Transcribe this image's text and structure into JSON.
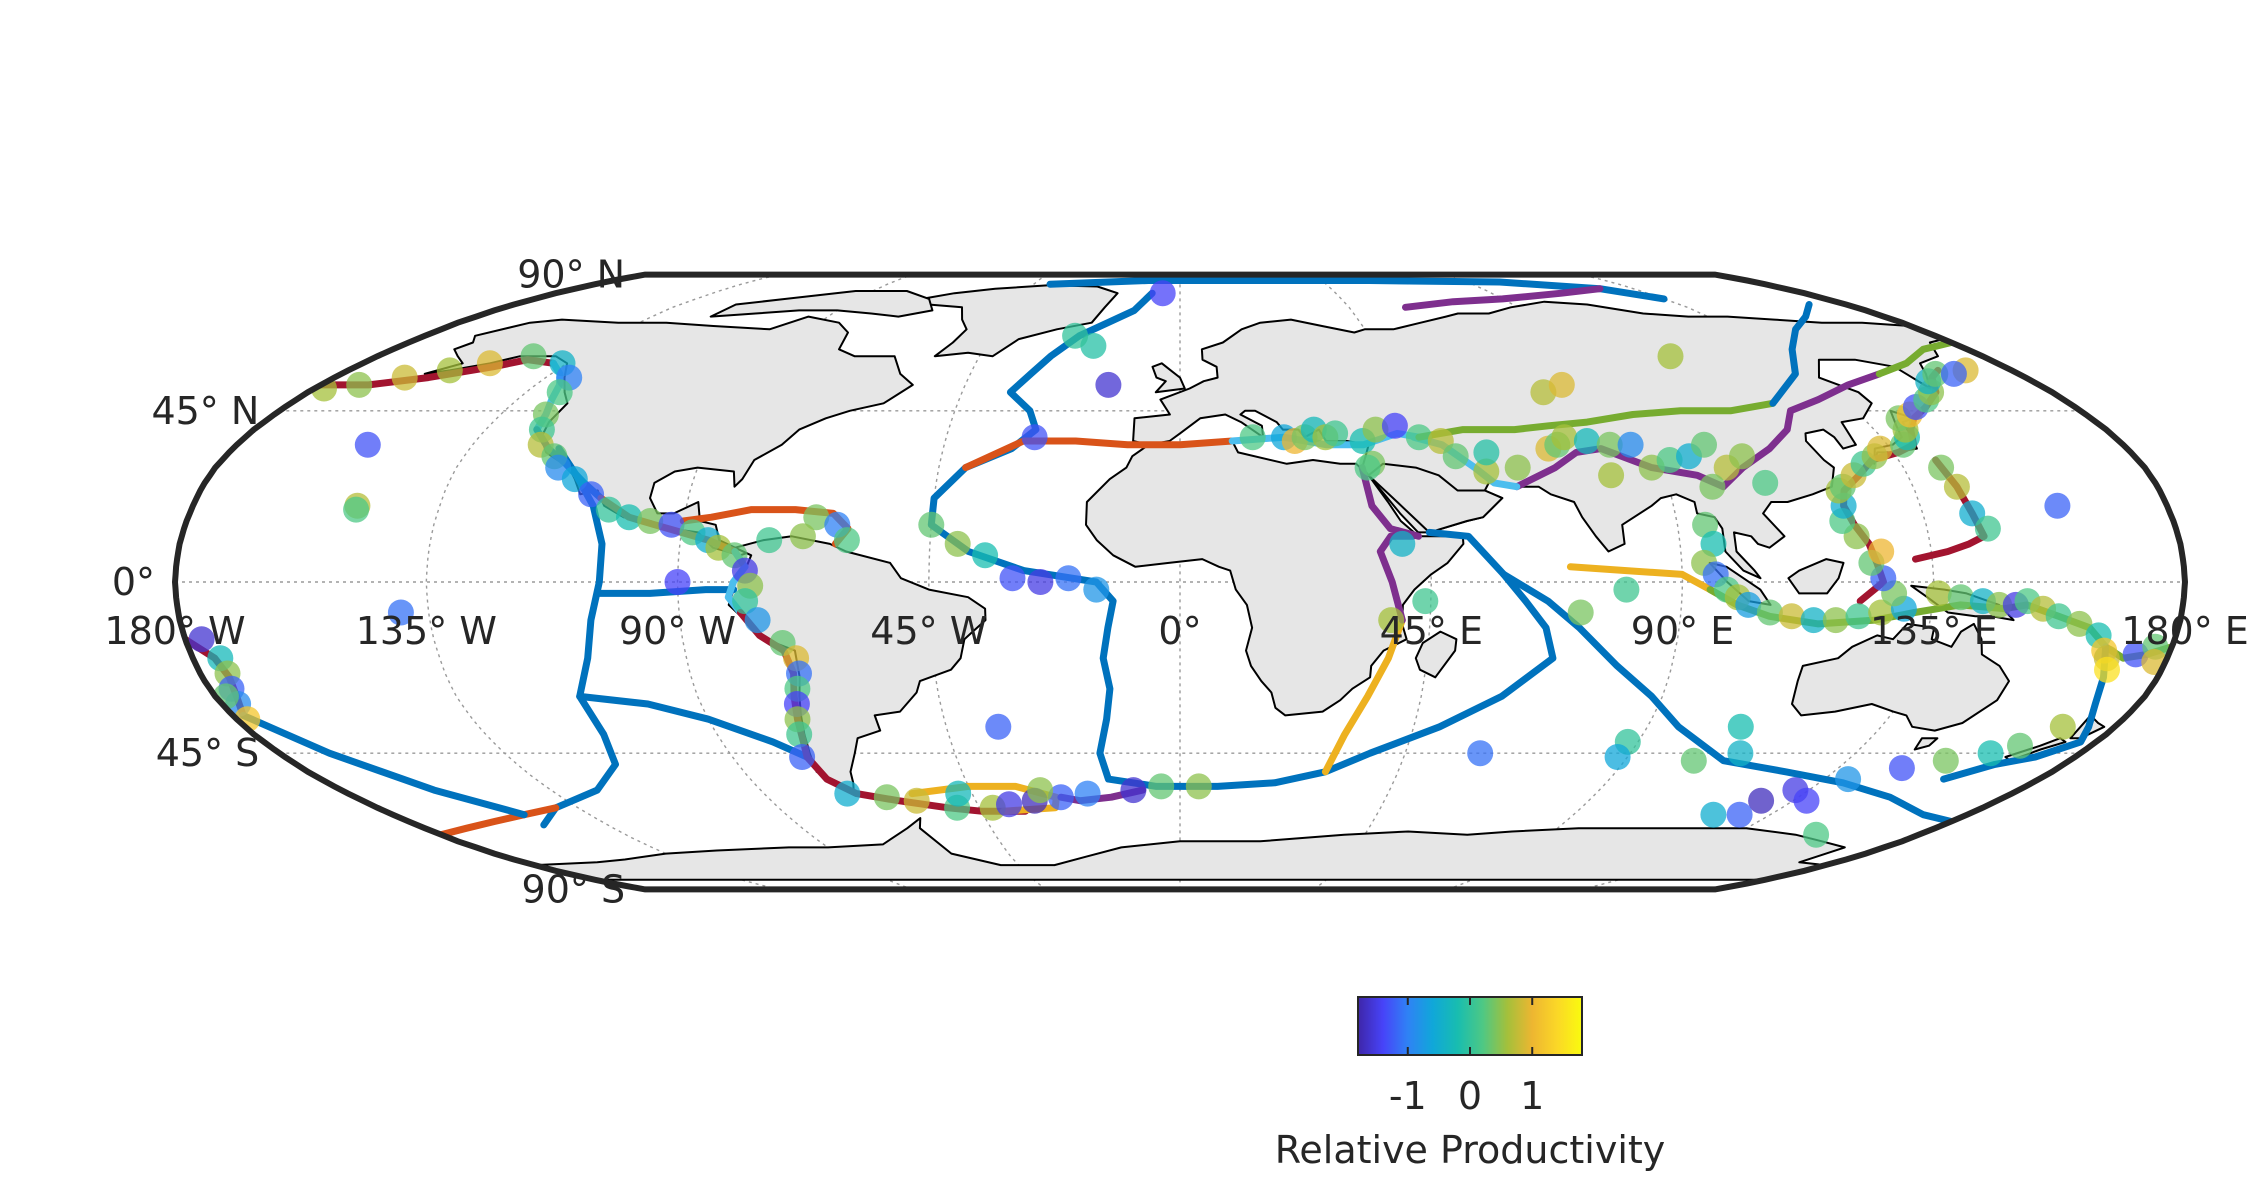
{
  "map": {
    "projection": "Robinson-like pseudocylindrical",
    "lat_labels": [
      {
        "deg": 90,
        "hemi": "N"
      },
      {
        "deg": 45,
        "hemi": "N"
      },
      {
        "deg": 0,
        "hemi": ""
      },
      {
        "deg": 45,
        "hemi": "S"
      },
      {
        "deg": 90,
        "hemi": "S"
      }
    ],
    "lon_labels": [
      {
        "deg": 180,
        "hemi": "W"
      },
      {
        "deg": 135,
        "hemi": "W"
      },
      {
        "deg": 90,
        "hemi": "W"
      },
      {
        "deg": 45,
        "hemi": "W"
      },
      {
        "deg": 0,
        "hemi": ""
      },
      {
        "deg": 45,
        "hemi": "E"
      },
      {
        "deg": 90,
        "hemi": "E"
      },
      {
        "deg": 135,
        "hemi": "E"
      },
      {
        "deg": 180,
        "hemi": "E"
      }
    ],
    "land_color": "#e6e6e6",
    "coast_color": "#000000",
    "grid_color": "#9a9a9a",
    "boundary_colors": [
      "#0072bd",
      "#d95319",
      "#edb120",
      "#7e2f8e",
      "#77ac30",
      "#4dbeee",
      "#a2142f"
    ]
  },
  "colorbar": {
    "label": "Relative Productivity",
    "ticks": [
      {
        "value": -1,
        "label": "-1"
      },
      {
        "value": 0,
        "label": "0"
      },
      {
        "value": 1,
        "label": "1"
      }
    ],
    "range": [
      -1.8,
      1.8
    ],
    "colormap": [
      "#3e26a8",
      "#4743f8",
      "#2f82f5",
      "#10a7d9",
      "#18bdb0",
      "#4dc885",
      "#a4c03b",
      "#edb631",
      "#fbd727",
      "#f9fb0e"
    ]
  },
  "chart_data": {
    "type": "scatter",
    "title": "",
    "colorbar_label": "Relative Productivity",
    "clim": [
      -1.8,
      1.8
    ],
    "points": [
      {
        "lon": -152,
        "lat": 58,
        "v": 0.9
      },
      {
        "lon": -158,
        "lat": 56,
        "v": 0.6
      },
      {
        "lon": -165,
        "lat": 54,
        "v": 0.8
      },
      {
        "lon": -172,
        "lat": 52,
        "v": 0.5
      },
      {
        "lon": -178,
        "lat": 51,
        "v": 0.6
      },
      {
        "lon": -145,
        "lat": 60,
        "v": 0.3
      },
      {
        "lon": -136,
        "lat": 58,
        "v": -0.4
      },
      {
        "lon": -130,
        "lat": 54,
        "v": -1.0
      },
      {
        "lon": -128,
        "lat": 50,
        "v": 0.2
      },
      {
        "lon": -126,
        "lat": 44,
        "v": 0.4
      },
      {
        "lon": -124,
        "lat": 40,
        "v": 0.1
      },
      {
        "lon": -122,
        "lat": 36,
        "v": 0.7
      },
      {
        "lon": -118,
        "lat": 33,
        "v": 0.3
      },
      {
        "lon": -116,
        "lat": 30,
        "v": -0.9
      },
      {
        "lon": -112,
        "lat": 27,
        "v": -0.6
      },
      {
        "lon": -108,
        "lat": 23,
        "v": -1.2
      },
      {
        "lon": -104,
        "lat": 19,
        "v": 0.0
      },
      {
        "lon": -100,
        "lat": 17,
        "v": -0.2
      },
      {
        "lon": -96,
        "lat": 16,
        "v": 0.4
      },
      {
        "lon": -92,
        "lat": 15,
        "v": -1.3
      },
      {
        "lon": -88,
        "lat": 13,
        "v": 0.2
      },
      {
        "lon": -85,
        "lat": 11,
        "v": -0.5
      },
      {
        "lon": -83,
        "lat": 9,
        "v": 0.6
      },
      {
        "lon": -80,
        "lat": 7,
        "v": 0.3
      },
      {
        "lon": -78,
        "lat": 3,
        "v": -1.5
      },
      {
        "lon": -77,
        "lat": -1,
        "v": 0.5
      },
      {
        "lon": -78,
        "lat": -5,
        "v": 0.0
      },
      {
        "lon": -76,
        "lat": -10,
        "v": -0.8
      },
      {
        "lon": -72,
        "lat": -16,
        "v": 0.3
      },
      {
        "lon": -70,
        "lat": -20,
        "v": 0.9
      },
      {
        "lon": -70,
        "lat": -24,
        "v": -1.1
      },
      {
        "lon": -71,
        "lat": -28,
        "v": 0.2
      },
      {
        "lon": -72,
        "lat": -32,
        "v": -1.4
      },
      {
        "lon": -73,
        "lat": -36,
        "v": 0.5
      },
      {
        "lon": -74,
        "lat": -40,
        "v": 0.1
      },
      {
        "lon": -76,
        "lat": -46,
        "v": -1.2
      },
      {
        "lon": -66,
        "lat": 17,
        "v": 0.4
      },
      {
        "lon": -62,
        "lat": 15,
        "v": -1.0
      },
      {
        "lon": -60,
        "lat": 11,
        "v": 0.2
      },
      {
        "lon": -68,
        "lat": 12,
        "v": 0.5
      },
      {
        "lon": -74,
        "lat": 11,
        "v": 0.1
      },
      {
        "lon": -90,
        "lat": 0,
        "v": -1.4
      },
      {
        "lon": -150,
        "lat": 20,
        "v": 0.7
      },
      {
        "lon": -150,
        "lat": 19,
        "v": 0.2
      },
      {
        "lon": -155,
        "lat": 36,
        "v": -1.3
      },
      {
        "lon": -140,
        "lat": -8,
        "v": -1.1
      },
      {
        "lon": -177,
        "lat": -15,
        "v": -1.6
      },
      {
        "lon": -175,
        "lat": -20,
        "v": -0.3
      },
      {
        "lon": -175,
        "lat": -24,
        "v": 0.5
      },
      {
        "lon": -176,
        "lat": -28,
        "v": -1.2
      },
      {
        "lon": -177,
        "lat": -32,
        "v": -0.9
      },
      {
        "lon": -178,
        "lat": -36,
        "v": 1.2
      },
      {
        "lon": -178,
        "lat": -30,
        "v": 0.3
      },
      {
        "lon": -72,
        "lat": -56,
        "v": -0.5
      },
      {
        "lon": -64,
        "lat": -57,
        "v": 0.4
      },
      {
        "lon": -58,
        "lat": -58,
        "v": 0.8
      },
      {
        "lon": -50,
        "lat": -60,
        "v": 0.2
      },
      {
        "lon": -42,
        "lat": -60,
        "v": 0.6
      },
      {
        "lon": -38,
        "lat": -59,
        "v": -1.5
      },
      {
        "lon": -32,
        "lat": -58,
        "v": -1.7
      },
      {
        "lon": -26,
        "lat": -57,
        "v": -1.2
      },
      {
        "lon": -30,
        "lat": -55,
        "v": 0.5
      },
      {
        "lon": -48,
        "lat": -56,
        "v": -0.3
      },
      {
        "lon": -20,
        "lat": -56,
        "v": -1.0
      },
      {
        "lon": -10,
        "lat": -55,
        "v": -1.6
      },
      {
        "lon": -4,
        "lat": -54,
        "v": 0.3
      },
      {
        "lon": 4,
        "lat": -54,
        "v": 0.5
      },
      {
        "lon": -15,
        "lat": 52,
        "v": -1.6
      },
      {
        "lon": -28,
        "lat": 38,
        "v": -1.3
      },
      {
        "lon": -20,
        "lat": 63,
        "v": -0.1
      },
      {
        "lon": -25,
        "lat": 66,
        "v": 0.0
      },
      {
        "lon": -5,
        "lat": 80,
        "v": -1.4
      },
      {
        "lon": -45,
        "lat": 15,
        "v": 0.3
      },
      {
        "lon": -40,
        "lat": 10,
        "v": 0.5
      },
      {
        "lon": -35,
        "lat": 7,
        "v": -0.2
      },
      {
        "lon": -30,
        "lat": 1,
        "v": -1.3
      },
      {
        "lon": -25,
        "lat": 0,
        "v": -1.5
      },
      {
        "lon": -20,
        "lat": 1,
        "v": -1.1
      },
      {
        "lon": -15,
        "lat": -2,
        "v": -0.8
      },
      {
        "lon": -35,
        "lat": -38,
        "v": -1.2
      },
      {
        "lon": 14,
        "lat": 38,
        "v": 0.2
      },
      {
        "lon": 20,
        "lat": 38,
        "v": -0.6
      },
      {
        "lon": 22,
        "lat": 37,
        "v": 1.0
      },
      {
        "lon": 24,
        "lat": 38,
        "v": 0.4
      },
      {
        "lon": 26,
        "lat": 40,
        "v": -0.3
      },
      {
        "lon": 28,
        "lat": 38,
        "v": 0.6
      },
      {
        "lon": 30,
        "lat": 39,
        "v": 0.1
      },
      {
        "lon": 35,
        "lat": 37,
        "v": -0.2
      },
      {
        "lon": 38,
        "lat": 40,
        "v": 0.5
      },
      {
        "lon": 42,
        "lat": 41,
        "v": -1.4
      },
      {
        "lon": 46,
        "lat": 38,
        "v": 0.2
      },
      {
        "lon": 50,
        "lat": 37,
        "v": 0.7
      },
      {
        "lon": 52,
        "lat": 33,
        "v": 0.3
      },
      {
        "lon": 57,
        "lat": 29,
        "v": 0.6
      },
      {
        "lon": 58,
        "lat": 34,
        "v": -0.1
      },
      {
        "lon": 36,
        "lat": 31,
        "v": 0.4
      },
      {
        "lon": 35,
        "lat": 30,
        "v": 0.2
      },
      {
        "lon": 40,
        "lat": 10,
        "v": -0.4
      },
      {
        "lon": 38,
        "lat": -10,
        "v": 0.6
      },
      {
        "lon": 44,
        "lat": -5,
        "v": 0.1
      },
      {
        "lon": 63,
        "lat": 30,
        "v": 0.5
      },
      {
        "lon": 70,
        "lat": 35,
        "v": 0.9
      },
      {
        "lon": 72,
        "lat": 36,
        "v": 0.3
      },
      {
        "lon": 74,
        "lat": 38,
        "v": 0.6
      },
      {
        "lon": 78,
        "lat": 37,
        "v": -0.3
      },
      {
        "lon": 82,
        "lat": 36,
        "v": 0.4
      },
      {
        "lon": 86,
        "lat": 36,
        "v": -0.9
      },
      {
        "lon": 88,
        "lat": 30,
        "v": 0.5
      },
      {
        "lon": 92,
        "lat": 32,
        "v": 0.2
      },
      {
        "lon": 96,
        "lat": 33,
        "v": -0.5
      },
      {
        "lon": 100,
        "lat": 36,
        "v": 0.3
      },
      {
        "lon": 102,
        "lat": 30,
        "v": 0.7
      },
      {
        "lon": 106,
        "lat": 33,
        "v": 0.5
      },
      {
        "lon": 108,
        "lat": 26,
        "v": 0.2
      },
      {
        "lon": 98,
        "lat": 25,
        "v": 0.4
      },
      {
        "lon": 80,
        "lat": 28,
        "v": 0.6
      },
      {
        "lon": 75,
        "lat": 50,
        "v": 0.7
      },
      {
        "lon": 80,
        "lat": 52,
        "v": 0.9
      },
      {
        "lon": 110,
        "lat": 60,
        "v": 0.6
      },
      {
        "lon": 95,
        "lat": 15,
        "v": 0.3
      },
      {
        "lon": 96,
        "lat": 10,
        "v": -0.2
      },
      {
        "lon": 94,
        "lat": 5,
        "v": 0.5
      },
      {
        "lon": 96,
        "lat": 2,
        "v": -1.1
      },
      {
        "lon": 98,
        "lat": -2,
        "v": 0.2
      },
      {
        "lon": 100,
        "lat": -4,
        "v": 0.6
      },
      {
        "lon": 102,
        "lat": -6,
        "v": -0.7
      },
      {
        "lon": 106,
        "lat": -8,
        "v": 0.3
      },
      {
        "lon": 110,
        "lat": -9,
        "v": 0.8
      },
      {
        "lon": 114,
        "lat": -10,
        "v": -0.4
      },
      {
        "lon": 118,
        "lat": -10,
        "v": 0.5
      },
      {
        "lon": 122,
        "lat": -9,
        "v": 0.1
      },
      {
        "lon": 126,
        "lat": -8,
        "v": 0.6
      },
      {
        "lon": 130,
        "lat": -7,
        "v": -0.6
      },
      {
        "lon": 128,
        "lat": -3,
        "v": 0.4
      },
      {
        "lon": 126,
        "lat": 1,
        "v": -1.2
      },
      {
        "lon": 124,
        "lat": 5,
        "v": 0.3
      },
      {
        "lon": 126,
        "lat": 8,
        "v": 1.0
      },
      {
        "lon": 122,
        "lat": 12,
        "v": 0.5
      },
      {
        "lon": 120,
        "lat": 16,
        "v": 0.2
      },
      {
        "lon": 121,
        "lat": 20,
        "v": -0.5
      },
      {
        "lon": 121,
        "lat": 24,
        "v": 0.6
      },
      {
        "lon": 122,
        "lat": 25,
        "v": 0.3
      },
      {
        "lon": 125,
        "lat": 28,
        "v": 0.8
      },
      {
        "lon": 128,
        "lat": 31,
        "v": 0.1
      },
      {
        "lon": 131,
        "lat": 33,
        "v": 0.5
      },
      {
        "lon": 133,
        "lat": 35,
        "v": 0.9
      },
      {
        "lon": 138,
        "lat": 36,
        "v": 0.3
      },
      {
        "lon": 140,
        "lat": 38,
        "v": -0.2
      },
      {
        "lon": 141,
        "lat": 40,
        "v": 0.6
      },
      {
        "lon": 142,
        "lat": 43,
        "v": 0.4
      },
      {
        "lon": 145,
        "lat": 44,
        "v": 1.1
      },
      {
        "lon": 148,
        "lat": 46,
        "v": -1.3
      },
      {
        "lon": 152,
        "lat": 48,
        "v": 0.2
      },
      {
        "lon": 155,
        "lat": 50,
        "v": 0.5
      },
      {
        "lon": 158,
        "lat": 53,
        "v": -0.4
      },
      {
        "lon": 162,
        "lat": 55,
        "v": 0.3
      },
      {
        "lon": 170,
        "lat": 56,
        "v": 0.9
      },
      {
        "lon": 166,
        "lat": 55,
        "v": -1.2
      },
      {
        "lon": 142,
        "lat": 30,
        "v": 0.4
      },
      {
        "lon": 143,
        "lat": 25,
        "v": 0.7
      },
      {
        "lon": 144,
        "lat": 18,
        "v": -0.5
      },
      {
        "lon": 146,
        "lat": 14,
        "v": 0.1
      },
      {
        "lon": 136,
        "lat": -3,
        "v": 0.6
      },
      {
        "lon": 140,
        "lat": -4,
        "v": 0.3
      },
      {
        "lon": 144,
        "lat": -5,
        "v": -0.4
      },
      {
        "lon": 147,
        "lat": -6,
        "v": 0.5
      },
      {
        "lon": 150,
        "lat": -6,
        "v": -1.5
      },
      {
        "lon": 152,
        "lat": -5,
        "v": 0.2
      },
      {
        "lon": 155,
        "lat": -7,
        "v": 0.7
      },
      {
        "lon": 158,
        "lat": -9,
        "v": 0.1
      },
      {
        "lon": 162,
        "lat": -11,
        "v": 0.5
      },
      {
        "lon": 166,
        "lat": -14,
        "v": -0.2
      },
      {
        "lon": 168,
        "lat": -18,
        "v": 1.2
      },
      {
        "lon": 169,
        "lat": -20,
        "v": 0.8
      },
      {
        "lon": 170,
        "lat": -23,
        "v": 1.5
      },
      {
        "lon": 174,
        "lat": -19,
        "v": -1.3
      },
      {
        "lon": 177,
        "lat": -17,
        "v": 0.3
      },
      {
        "lon": 178,
        "lat": -21,
        "v": 0.9
      },
      {
        "lon": 160,
        "lat": 20,
        "v": -1.2
      },
      {
        "lon": 170,
        "lat": -38,
        "v": 0.6
      },
      {
        "lon": 166,
        "lat": -43,
        "v": 0.3
      },
      {
        "lon": 162,
        "lat": -45,
        "v": -0.2
      },
      {
        "lon": 155,
        "lat": -47,
        "v": 0.4
      },
      {
        "lon": 148,
        "lat": -49,
        "v": -1.3
      },
      {
        "lon": 140,
        "lat": -52,
        "v": -0.8
      },
      {
        "lon": 132,
        "lat": -55,
        "v": -1.5
      },
      {
        "lon": 128,
        "lat": -58,
        "v": -1.7
      },
      {
        "lon": 122,
        "lat": -62,
        "v": -0.5
      },
      {
        "lon": 128,
        "lat": -62,
        "v": -1.2
      },
      {
        "lon": 138,
        "lat": -58,
        "v": -1.4
      },
      {
        "lon": 112,
        "lat": -45,
        "v": -0.4
      },
      {
        "lon": 88,
        "lat": -42,
        "v": 0.0
      },
      {
        "lon": 88,
        "lat": -46,
        "v": -0.6
      },
      {
        "lon": 104,
        "lat": -47,
        "v": 0.3
      },
      {
        "lon": 108,
        "lat": -38,
        "v": -0.2
      },
      {
        "lon": 60,
        "lat": -45,
        "v": -1.1
      },
      {
        "lon": 80,
        "lat": -2,
        "v": 0.1
      },
      {
        "lon": 72,
        "lat": -8,
        "v": 0.4
      },
      {
        "lon": 155,
        "lat": -68,
        "v": 0.2
      }
    ]
  }
}
